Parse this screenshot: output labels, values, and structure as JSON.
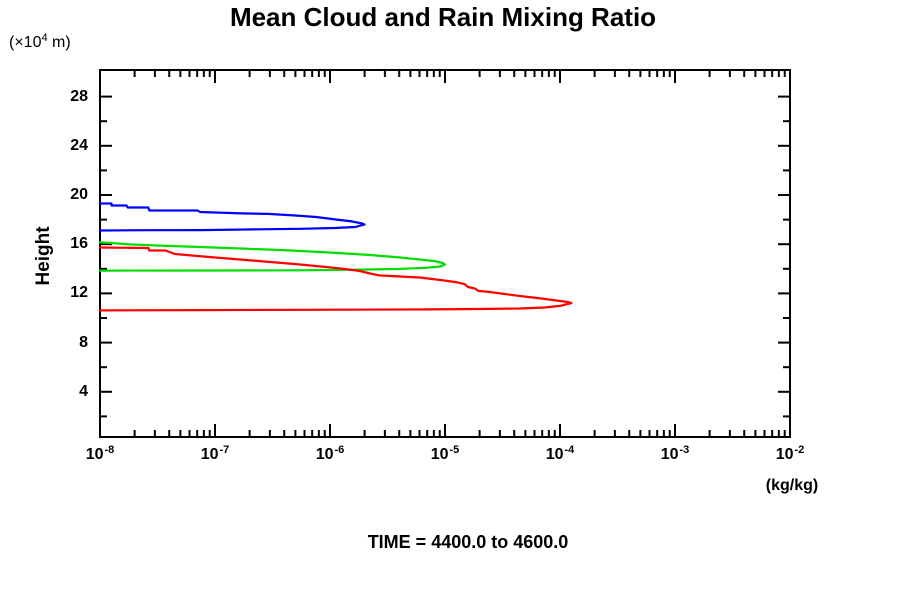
{
  "chart_data": {
    "type": "line",
    "title": "Mean Cloud and Rain Mixing Ratio",
    "xlabel": "(kg/kg)",
    "ylabel": "Height",
    "annotation": "TIME = 4400.0 to 4600.0",
    "y_unit_prefix": "(×10",
    "y_unit_exp": "4",
    "y_unit_suffix": " m)",
    "x_scale": "log",
    "x_range_log10": [
      -8,
      -2
    ],
    "y_range": [
      0,
      30
    ],
    "grid": false,
    "legend": "none",
    "y_major_ticks": [
      4,
      8,
      12,
      16,
      20,
      24,
      28
    ],
    "y_minor_ticks": [
      2,
      6,
      10,
      14,
      18,
      22,
      26
    ],
    "x_major_exponents": [
      -8,
      -7,
      -6,
      -5,
      -4,
      -3,
      -2
    ],
    "x_tick_base": "10",
    "axis_color": "#000000",
    "series": [
      {
        "name": "blue-contour",
        "color": "#0000ff",
        "points_log10x_height": [
          [
            -8.0,
            19.31
          ],
          [
            -7.9,
            19.31
          ],
          [
            -7.9,
            19.15
          ],
          [
            -7.77,
            19.15
          ],
          [
            -7.76,
            18.98
          ],
          [
            -7.58,
            18.98
          ],
          [
            -7.57,
            18.74
          ],
          [
            -7.15,
            18.74
          ],
          [
            -7.13,
            18.62
          ],
          [
            -6.77,
            18.5
          ],
          [
            -6.54,
            18.46
          ],
          [
            -6.3,
            18.33
          ],
          [
            -6.12,
            18.21
          ],
          [
            -5.95,
            18.01
          ],
          [
            -5.81,
            17.85
          ],
          [
            -5.72,
            17.68
          ],
          [
            -5.7,
            17.6
          ],
          [
            -5.78,
            17.4
          ],
          [
            -5.96,
            17.32
          ],
          [
            -6.26,
            17.25
          ],
          [
            -6.61,
            17.21
          ],
          [
            -7.13,
            17.15
          ],
          [
            -7.57,
            17.14
          ],
          [
            -8.0,
            17.11
          ]
        ]
      },
      {
        "name": "green-contour",
        "color": "#00dd00",
        "points_log10x_height": [
          [
            -8.0,
            16.15
          ],
          [
            -7.91,
            16.1
          ],
          [
            -7.74,
            15.98
          ],
          [
            -7.48,
            15.89
          ],
          [
            -7.13,
            15.77
          ],
          [
            -6.78,
            15.65
          ],
          [
            -6.43,
            15.53
          ],
          [
            -6.17,
            15.41
          ],
          [
            -5.91,
            15.28
          ],
          [
            -5.65,
            15.12
          ],
          [
            -5.39,
            14.92
          ],
          [
            -5.22,
            14.76
          ],
          [
            -5.09,
            14.63
          ],
          [
            -5.02,
            14.47
          ],
          [
            -5.0,
            14.35
          ],
          [
            -5.04,
            14.19
          ],
          [
            -5.17,
            14.08
          ],
          [
            -5.39,
            13.99
          ],
          [
            -5.83,
            13.92
          ],
          [
            -6.26,
            13.88
          ],
          [
            -6.96,
            13.86
          ],
          [
            -8.0,
            13.85
          ]
        ]
      },
      {
        "name": "red-contour",
        "color": "#ff0000",
        "points_log10x_height": [
          [
            -8.0,
            15.73
          ],
          [
            -7.58,
            15.69
          ],
          [
            -7.57,
            15.49
          ],
          [
            -7.43,
            15.49
          ],
          [
            -7.35,
            15.2
          ],
          [
            -7.0,
            14.92
          ],
          [
            -6.78,
            14.76
          ],
          [
            -6.52,
            14.55
          ],
          [
            -6.26,
            14.35
          ],
          [
            -6.0,
            14.11
          ],
          [
            -5.87,
            13.98
          ],
          [
            -5.74,
            13.82
          ],
          [
            -5.65,
            13.62
          ],
          [
            -5.57,
            13.46
          ],
          [
            -5.22,
            13.29
          ],
          [
            -5.04,
            13.09
          ],
          [
            -4.91,
            12.93
          ],
          [
            -4.83,
            12.76
          ],
          [
            -4.8,
            12.52
          ],
          [
            -4.74,
            12.4
          ],
          [
            -4.71,
            12.2
          ],
          [
            -4.61,
            12.11
          ],
          [
            -4.48,
            11.95
          ],
          [
            -4.35,
            11.79
          ],
          [
            -4.17,
            11.59
          ],
          [
            -4.03,
            11.42
          ],
          [
            -3.93,
            11.3
          ],
          [
            -3.9,
            11.22
          ],
          [
            -4.0,
            10.98
          ],
          [
            -4.13,
            10.85
          ],
          [
            -4.35,
            10.77
          ],
          [
            -4.7,
            10.73
          ],
          [
            -5.13,
            10.7
          ],
          [
            -6.26,
            10.67
          ],
          [
            -7.13,
            10.64
          ],
          [
            -8.0,
            10.62
          ]
        ]
      }
    ]
  }
}
